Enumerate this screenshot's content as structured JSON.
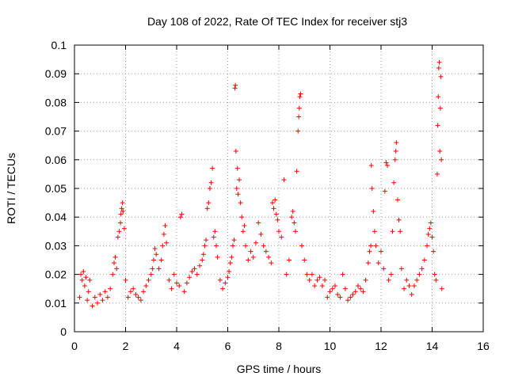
{
  "chart_data": {
    "type": "scatter",
    "title": "Day 108 of 2022, Rate Of TEC Index for receiver stj3",
    "xlabel": "GPS time / hours",
    "ylabel": "ROTI / TECUs",
    "xlim": [
      0,
      16
    ],
    "ylim": [
      0,
      0.1
    ],
    "xticks": [
      0,
      2,
      4,
      6,
      8,
      10,
      12,
      14,
      16
    ],
    "xtick_labels": [
      "0",
      "2",
      "4",
      "6",
      "8",
      "10",
      "12",
      "14",
      "16"
    ],
    "yticks": [
      0,
      0.01,
      0.02,
      0.03,
      0.04,
      0.05,
      0.06,
      0.07,
      0.08,
      0.09,
      0.1
    ],
    "ytick_labels": [
      "0",
      "0.01",
      "0.02",
      "0.03",
      "0.04",
      "0.05",
      "0.06",
      "0.07",
      "0.08",
      "0.09",
      "0.1"
    ],
    "grid": true,
    "marker": "+",
    "color": "#ff0000",
    "series": [
      {
        "name": "ROTI",
        "points": [
          [
            0.2,
            0.012
          ],
          [
            0.25,
            0.02
          ],
          [
            0.3,
            0.018
          ],
          [
            0.35,
            0.021
          ],
          [
            0.4,
            0.016
          ],
          [
            0.45,
            0.019
          ],
          [
            0.5,
            0.011
          ],
          [
            0.55,
            0.014
          ],
          [
            0.6,
            0.018
          ],
          [
            0.7,
            0.009
          ],
          [
            0.8,
            0.012
          ],
          [
            0.9,
            0.01
          ],
          [
            1.0,
            0.013
          ],
          [
            1.1,
            0.011
          ],
          [
            1.2,
            0.014
          ],
          [
            1.3,
            0.012
          ],
          [
            1.4,
            0.015
          ],
          [
            1.5,
            0.02
          ],
          [
            1.55,
            0.024
          ],
          [
            1.6,
            0.026
          ],
          [
            1.65,
            0.022
          ],
          [
            1.7,
            0.033
          ],
          [
            1.75,
            0.035
          ],
          [
            1.8,
            0.038
          ],
          [
            1.82,
            0.041
          ],
          [
            1.85,
            0.043
          ],
          [
            1.88,
            0.045
          ],
          [
            1.9,
            0.042
          ],
          [
            1.95,
            0.036
          ],
          [
            2.0,
            0.018
          ],
          [
            2.1,
            0.012
          ],
          [
            2.2,
            0.014
          ],
          [
            2.3,
            0.015
          ],
          [
            2.4,
            0.013
          ],
          [
            2.5,
            0.012
          ],
          [
            2.6,
            0.011
          ],
          [
            2.7,
            0.014
          ],
          [
            2.8,
            0.016
          ],
          [
            2.9,
            0.018
          ],
          [
            3.0,
            0.02
          ],
          [
            3.05,
            0.022
          ],
          [
            3.1,
            0.025
          ],
          [
            3.15,
            0.029
          ],
          [
            3.2,
            0.027
          ],
          [
            3.3,
            0.022
          ],
          [
            3.4,
            0.025
          ],
          [
            3.45,
            0.03
          ],
          [
            3.5,
            0.034
          ],
          [
            3.55,
            0.037
          ],
          [
            3.6,
            0.031
          ],
          [
            3.7,
            0.018
          ],
          [
            3.8,
            0.015
          ],
          [
            3.9,
            0.02
          ],
          [
            4.0,
            0.017
          ],
          [
            4.1,
            0.016
          ],
          [
            4.15,
            0.04
          ],
          [
            4.2,
            0.041
          ],
          [
            4.3,
            0.014
          ],
          [
            4.4,
            0.017
          ],
          [
            4.5,
            0.019
          ],
          [
            4.6,
            0.021
          ],
          [
            4.7,
            0.022
          ],
          [
            4.8,
            0.02
          ],
          [
            4.9,
            0.023
          ],
          [
            5.0,
            0.025
          ],
          [
            5.05,
            0.027
          ],
          [
            5.1,
            0.03
          ],
          [
            5.15,
            0.032
          ],
          [
            5.2,
            0.043
          ],
          [
            5.25,
            0.045
          ],
          [
            5.3,
            0.05
          ],
          [
            5.35,
            0.052
          ],
          [
            5.4,
            0.057
          ],
          [
            5.45,
            0.033
          ],
          [
            5.5,
            0.035
          ],
          [
            5.55,
            0.03
          ],
          [
            5.6,
            0.026
          ],
          [
            5.7,
            0.018
          ],
          [
            5.8,
            0.015
          ],
          [
            5.9,
            0.017
          ],
          [
            6.0,
            0.019
          ],
          [
            6.05,
            0.021
          ],
          [
            6.1,
            0.024
          ],
          [
            6.15,
            0.026
          ],
          [
            6.2,
            0.03
          ],
          [
            6.25,
            0.032
          ],
          [
            6.28,
            0.085
          ],
          [
            6.3,
            0.086
          ],
          [
            6.32,
            0.063
          ],
          [
            6.35,
            0.05
          ],
          [
            6.38,
            0.057
          ],
          [
            6.4,
            0.048
          ],
          [
            6.45,
            0.053
          ],
          [
            6.5,
            0.045
          ],
          [
            6.55,
            0.04
          ],
          [
            6.6,
            0.035
          ],
          [
            6.65,
            0.037
          ],
          [
            6.7,
            0.03
          ],
          [
            6.8,
            0.025
          ],
          [
            6.9,
            0.028
          ],
          [
            7.0,
            0.026
          ],
          [
            7.1,
            0.031
          ],
          [
            7.2,
            0.038
          ],
          [
            7.3,
            0.034
          ],
          [
            7.4,
            0.03
          ],
          [
            7.5,
            0.028
          ],
          [
            7.6,
            0.026
          ],
          [
            7.7,
            0.024
          ],
          [
            7.75,
            0.045
          ],
          [
            7.8,
            0.043
          ],
          [
            7.85,
            0.046
          ],
          [
            7.9,
            0.041
          ],
          [
            7.95,
            0.039
          ],
          [
            8.0,
            0.035
          ],
          [
            8.1,
            0.033
          ],
          [
            8.2,
            0.053
          ],
          [
            8.3,
            0.02
          ],
          [
            8.4,
            0.025
          ],
          [
            8.5,
            0.04
          ],
          [
            8.55,
            0.042
          ],
          [
            8.6,
            0.038
          ],
          [
            8.65,
            0.035
          ],
          [
            8.7,
            0.056
          ],
          [
            8.75,
            0.07
          ],
          [
            8.78,
            0.075
          ],
          [
            8.8,
            0.078
          ],
          [
            8.82,
            0.082
          ],
          [
            8.85,
            0.083
          ],
          [
            8.9,
            0.03
          ],
          [
            9.0,
            0.025
          ],
          [
            9.1,
            0.02
          ],
          [
            9.2,
            0.018
          ],
          [
            9.3,
            0.02
          ],
          [
            9.4,
            0.016
          ],
          [
            9.5,
            0.018
          ],
          [
            9.6,
            0.019
          ],
          [
            9.7,
            0.016
          ],
          [
            9.8,
            0.018
          ],
          [
            9.9,
            0.012
          ],
          [
            10.0,
            0.014
          ],
          [
            10.1,
            0.015
          ],
          [
            10.2,
            0.016
          ],
          [
            10.3,
            0.013
          ],
          [
            10.4,
            0.012
          ],
          [
            10.5,
            0.02
          ],
          [
            10.6,
            0.015
          ],
          [
            10.7,
            0.011
          ],
          [
            10.8,
            0.012
          ],
          [
            10.9,
            0.013
          ],
          [
            11.0,
            0.014
          ],
          [
            11.1,
            0.016
          ],
          [
            11.2,
            0.015
          ],
          [
            11.3,
            0.014
          ],
          [
            11.4,
            0.018
          ],
          [
            11.5,
            0.024
          ],
          [
            11.55,
            0.028
          ],
          [
            11.6,
            0.03
          ],
          [
            11.62,
            0.058
          ],
          [
            11.65,
            0.05
          ],
          [
            11.7,
            0.042
          ],
          [
            11.75,
            0.035
          ],
          [
            11.8,
            0.03
          ],
          [
            11.9,
            0.024
          ],
          [
            12.0,
            0.028
          ],
          [
            12.1,
            0.022
          ],
          [
            12.15,
            0.049
          ],
          [
            12.2,
            0.059
          ],
          [
            12.25,
            0.058
          ],
          [
            12.3,
            0.018
          ],
          [
            12.4,
            0.02
          ],
          [
            12.45,
            0.035
          ],
          [
            12.5,
            0.052
          ],
          [
            12.55,
            0.06
          ],
          [
            12.58,
            0.063
          ],
          [
            12.6,
            0.066
          ],
          [
            12.65,
            0.046
          ],
          [
            12.7,
            0.039
          ],
          [
            12.75,
            0.035
          ],
          [
            12.8,
            0.022
          ],
          [
            12.9,
            0.015
          ],
          [
            13.0,
            0.018
          ],
          [
            13.1,
            0.016
          ],
          [
            13.2,
            0.013
          ],
          [
            13.3,
            0.016
          ],
          [
            13.4,
            0.018
          ],
          [
            13.5,
            0.02
          ],
          [
            13.6,
            0.022
          ],
          [
            13.7,
            0.025
          ],
          [
            13.8,
            0.03
          ],
          [
            13.85,
            0.034
          ],
          [
            13.9,
            0.036
          ],
          [
            13.95,
            0.038
          ],
          [
            14.0,
            0.033
          ],
          [
            14.05,
            0.028
          ],
          [
            14.1,
            0.02
          ],
          [
            14.15,
            0.018
          ],
          [
            14.2,
            0.055
          ],
          [
            14.22,
            0.072
          ],
          [
            14.24,
            0.082
          ],
          [
            14.26,
            0.092
          ],
          [
            14.28,
            0.094
          ],
          [
            14.3,
            0.063
          ],
          [
            14.32,
            0.078
          ],
          [
            14.34,
            0.089
          ],
          [
            14.36,
            0.06
          ],
          [
            14.38,
            0.015
          ]
        ]
      }
    ]
  }
}
